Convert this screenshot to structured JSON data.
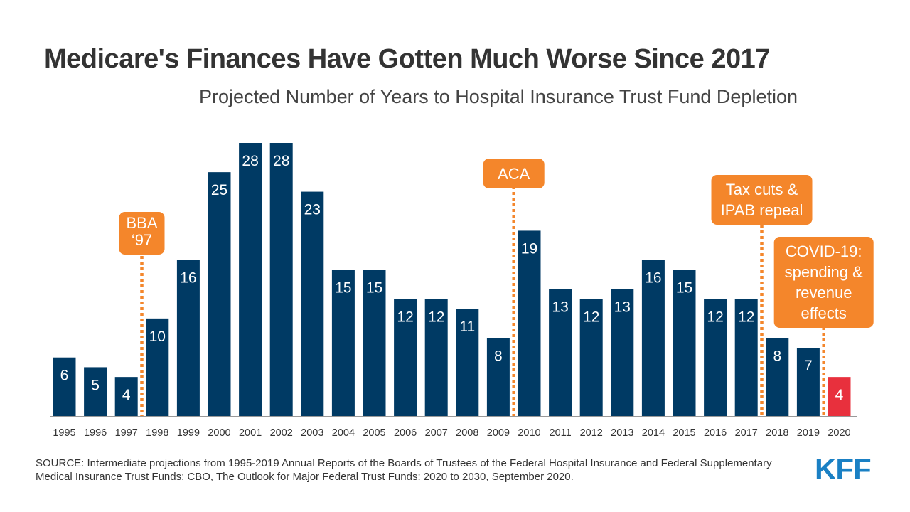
{
  "title": "Medicare's Finances Have Gotten Much Worse Since 2017",
  "subtitle": "Projected Number of Years to Hospital Insurance Trust Fund Depletion",
  "source": "SOURCE: Intermediate projections from 1995-2019 Annual Reports of the Boards of Trustees of the Federal Hospital Insurance and Federal Supplementary Medical Insurance Trust Funds; CBO, The Outlook for Major Federal Trust Funds: 2020 to 2030, September 2020.",
  "logo": "KFF",
  "colors": {
    "bar": "#003a64",
    "highlight_bar": "#e8303d",
    "annotation": "#f4862b",
    "axis": "#999999"
  },
  "chart_data": {
    "type": "bar",
    "title": "Medicare's Finances Have Gotten Much Worse Since 2017",
    "subtitle": "Projected Number of Years to Hospital Insurance Trust Fund Depletion",
    "xlabel": "",
    "ylabel": "",
    "categories": [
      "1995",
      "1996",
      "1997",
      "1998",
      "1999",
      "2000",
      "2001",
      "2002",
      "2003",
      "2004",
      "2005",
      "2006",
      "2007",
      "2008",
      "2009",
      "2010",
      "2011",
      "2012",
      "2013",
      "2014",
      "2015",
      "2016",
      "2017",
      "2018",
      "2019",
      "2020"
    ],
    "values": [
      6,
      5,
      4,
      10,
      16,
      25,
      28,
      28,
      23,
      15,
      15,
      12,
      12,
      11,
      8,
      19,
      13,
      12,
      13,
      16,
      15,
      12,
      12,
      8,
      7,
      4
    ],
    "highlight_category": "2020",
    "ylim": [
      0,
      28
    ],
    "grid": false,
    "legend": "none",
    "annotations": [
      {
        "label_lines": [
          "BBA",
          "‘97"
        ],
        "between": [
          "1997",
          "1998"
        ]
      },
      {
        "label_lines": [
          "ACA"
        ],
        "between": [
          "2009",
          "2010"
        ]
      },
      {
        "label_lines": [
          "Tax cuts &",
          "IPAB repeal"
        ],
        "between": [
          "2017",
          "2018"
        ]
      },
      {
        "label_lines": [
          "COVID-19:",
          "spending &",
          "revenue",
          "effects"
        ],
        "between": [
          "2019",
          "2020"
        ]
      }
    ]
  }
}
